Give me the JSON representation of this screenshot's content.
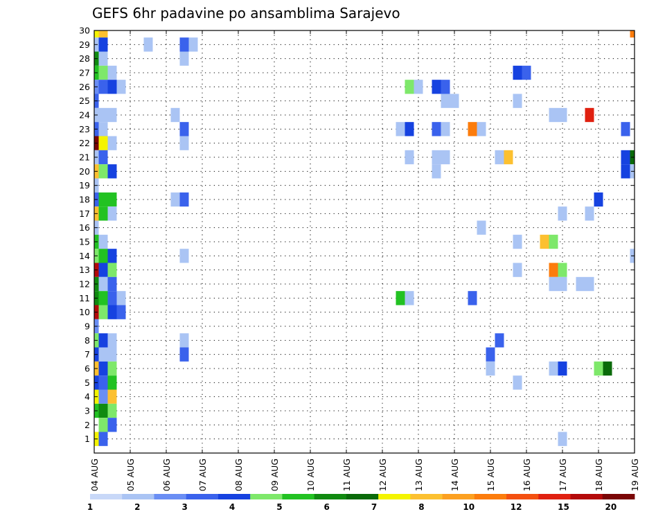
{
  "chart_data": {
    "type": "heatmap",
    "title": "GEFS 6hr padavine po ansamblima Sarajevo",
    "xlabel": "",
    "ylabel": "",
    "x_tick_labels": [
      "04 AUG",
      "05 AUG",
      "06 AUG",
      "07 AUG",
      "08 AUG",
      "09 AUG",
      "10 AUG",
      "11 AUG",
      "12 AUG",
      "13 AUG",
      "14 AUG",
      "15 AUG",
      "16 AUG",
      "17 AUG",
      "18 AUG",
      "19 AUG"
    ],
    "y_tick_labels": [
      "1",
      "2",
      "3",
      "4",
      "5",
      "6",
      "7",
      "8",
      "9",
      "10",
      "11",
      "12",
      "13",
      "14",
      "15",
      "16",
      "17",
      "18",
      "19",
      "20",
      "21",
      "22",
      "23",
      "24",
      "25",
      "26",
      "27",
      "28",
      "29",
      "30"
    ],
    "ylim": [
      0,
      30
    ],
    "time_steps": 61,
    "grid": "dotted",
    "colorbar": {
      "placement": "bottom",
      "labels": [
        "1",
        "2",
        "3",
        "4",
        "5",
        "6",
        "7",
        "8",
        "10",
        "12",
        "15",
        "20"
      ],
      "colors": [
        "#c8d8f8",
        "#aac4f4",
        "#6a8ef4",
        "#3a62ec",
        "#1642e0",
        "#7ee86a",
        "#22c222",
        "#108a10",
        "#0a6a0a",
        "#f4f400",
        "#fcc030",
        "#fca020",
        "#fc7c0c",
        "#f45010",
        "#e02010",
        "#b40a0a",
        "#7a0606"
      ]
    },
    "cells": [
      [
        0,
        30,
        9
      ],
      [
        1,
        30,
        10
      ],
      [
        60,
        30,
        12
      ],
      [
        0,
        29,
        1
      ],
      [
        1,
        29,
        4
      ],
      [
        6,
        29,
        1
      ],
      [
        10,
        29,
        3
      ],
      [
        11,
        29,
        1
      ],
      [
        0,
        28,
        7
      ],
      [
        1,
        28,
        1
      ],
      [
        10,
        28,
        1
      ],
      [
        0,
        27,
        6
      ],
      [
        1,
        27,
        5
      ],
      [
        2,
        27,
        1
      ],
      [
        47,
        27,
        4
      ],
      [
        48,
        27,
        3
      ],
      [
        0,
        26,
        2
      ],
      [
        1,
        26,
        3
      ],
      [
        2,
        26,
        4
      ],
      [
        3,
        26,
        1
      ],
      [
        35,
        26,
        5
      ],
      [
        36,
        26,
        1
      ],
      [
        38,
        26,
        4
      ],
      [
        39,
        26,
        3
      ],
      [
        0,
        25,
        3
      ],
      [
        39,
        25,
        1
      ],
      [
        40,
        25,
        1
      ],
      [
        47,
        25,
        1
      ],
      [
        0,
        24,
        1
      ],
      [
        1,
        24,
        1
      ],
      [
        2,
        24,
        1
      ],
      [
        9,
        24,
        1
      ],
      [
        51,
        24,
        1
      ],
      [
        52,
        24,
        1
      ],
      [
        55,
        24,
        14
      ],
      [
        0,
        23,
        3
      ],
      [
        1,
        23,
        1
      ],
      [
        10,
        23,
        3
      ],
      [
        34,
        23,
        1
      ],
      [
        35,
        23,
        4
      ],
      [
        38,
        23,
        3
      ],
      [
        39,
        23,
        1
      ],
      [
        42,
        23,
        12
      ],
      [
        43,
        23,
        1
      ],
      [
        59,
        23,
        3
      ],
      [
        0,
        22,
        16
      ],
      [
        1,
        22,
        9
      ],
      [
        2,
        22,
        1
      ],
      [
        10,
        22,
        1
      ],
      [
        0,
        21,
        1
      ],
      [
        1,
        21,
        3
      ],
      [
        35,
        21,
        1
      ],
      [
        38,
        21,
        1
      ],
      [
        39,
        21,
        1
      ],
      [
        45,
        21,
        1
      ],
      [
        46,
        21,
        10
      ],
      [
        59,
        21,
        4
      ],
      [
        60,
        21,
        8
      ],
      [
        0,
        20,
        10
      ],
      [
        1,
        20,
        5
      ],
      [
        2,
        20,
        4
      ],
      [
        38,
        20,
        1
      ],
      [
        59,
        20,
        4
      ],
      [
        60,
        20,
        1
      ],
      [
        0,
        19,
        1
      ],
      [
        0,
        18,
        3
      ],
      [
        1,
        18,
        6
      ],
      [
        2,
        18,
        6
      ],
      [
        9,
        18,
        1
      ],
      [
        10,
        18,
        3
      ],
      [
        56,
        18,
        4
      ],
      [
        0,
        17,
        10
      ],
      [
        1,
        17,
        6
      ],
      [
        2,
        17,
        1
      ],
      [
        52,
        17,
        1
      ],
      [
        55,
        17,
        1
      ],
      [
        0,
        16,
        1
      ],
      [
        43,
        16,
        1
      ],
      [
        0,
        15,
        6
      ],
      [
        1,
        15,
        1
      ],
      [
        47,
        15,
        1
      ],
      [
        50,
        15,
        10
      ],
      [
        51,
        15,
        5
      ],
      [
        0,
        14,
        5
      ],
      [
        1,
        14,
        6
      ],
      [
        2,
        14,
        4
      ],
      [
        10,
        14,
        1
      ],
      [
        60,
        14,
        1
      ],
      [
        0,
        13,
        15
      ],
      [
        1,
        13,
        4
      ],
      [
        2,
        13,
        5
      ],
      [
        47,
        13,
        1
      ],
      [
        51,
        13,
        12
      ],
      [
        52,
        13,
        5
      ],
      [
        0,
        12,
        7
      ],
      [
        1,
        12,
        1
      ],
      [
        2,
        12,
        3
      ],
      [
        51,
        12,
        1
      ],
      [
        52,
        12,
        1
      ],
      [
        54,
        12,
        1
      ],
      [
        55,
        12,
        1
      ],
      [
        0,
        11,
        7
      ],
      [
        1,
        11,
        6
      ],
      [
        2,
        11,
        3
      ],
      [
        3,
        11,
        1
      ],
      [
        34,
        11,
        6
      ],
      [
        35,
        11,
        1
      ],
      [
        42,
        11,
        3
      ],
      [
        0,
        10,
        15
      ],
      [
        1,
        10,
        5
      ],
      [
        2,
        10,
        4
      ],
      [
        3,
        10,
        3
      ],
      [
        0,
        9,
        2
      ],
      [
        0,
        8,
        5
      ],
      [
        1,
        8,
        4
      ],
      [
        2,
        8,
        1
      ],
      [
        10,
        8,
        1
      ],
      [
        45,
        8,
        3
      ],
      [
        0,
        7,
        4
      ],
      [
        1,
        7,
        1
      ],
      [
        2,
        7,
        1
      ],
      [
        10,
        7,
        3
      ],
      [
        44,
        7,
        3
      ],
      [
        0,
        6,
        10
      ],
      [
        1,
        6,
        4
      ],
      [
        2,
        6,
        5
      ],
      [
        44,
        6,
        1
      ],
      [
        51,
        6,
        1
      ],
      [
        52,
        6,
        4
      ],
      [
        56,
        6,
        5
      ],
      [
        57,
        6,
        8
      ],
      [
        0,
        5,
        4
      ],
      [
        1,
        5,
        3
      ],
      [
        2,
        5,
        6
      ],
      [
        47,
        5,
        1
      ],
      [
        0,
        4,
        9
      ],
      [
        1,
        4,
        2
      ],
      [
        2,
        4,
        10
      ],
      [
        0,
        3,
        6
      ],
      [
        1,
        3,
        7
      ],
      [
        2,
        3,
        5
      ],
      [
        1,
        2,
        5
      ],
      [
        2,
        2,
        3
      ],
      [
        0,
        1,
        9
      ],
      [
        1,
        1,
        3
      ],
      [
        52,
        1,
        1
      ]
    ]
  }
}
